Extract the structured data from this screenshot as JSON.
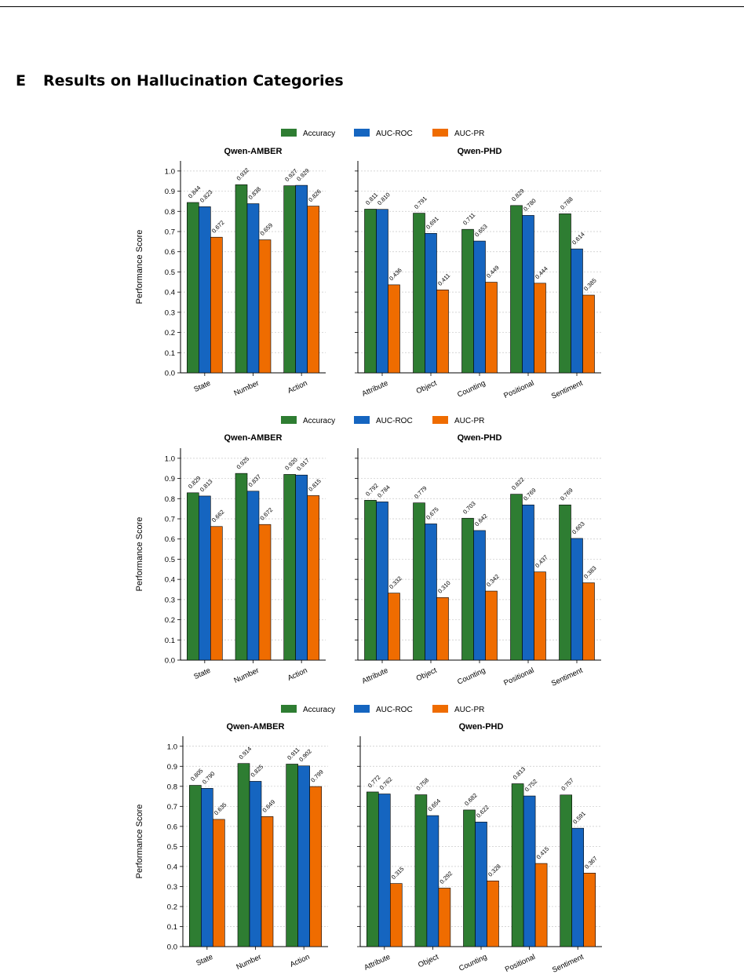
{
  "section": {
    "number": "E",
    "title": "Results on Hallucination Categories"
  },
  "colors": {
    "Accuracy": "#2e7d32",
    "AUC-ROC": "#1565c0",
    "AUC-PR": "#ef6c00"
  },
  "chart_data": [
    {
      "type": "bar",
      "legend": [
        "Accuracy",
        "AUC-ROC",
        "AUC-PR"
      ],
      "ylabel": "Performance Score",
      "ylim": [
        0,
        1.05
      ],
      "yticks": [
        "0.0",
        "0.1",
        "0.2",
        "0.3",
        "0.4",
        "0.5",
        "0.6",
        "0.7",
        "0.8",
        "0.9",
        "1.0"
      ],
      "grid": "horizontal-dotted",
      "panels": [
        {
          "title": "Qwen-AMBER",
          "categories": [
            "State",
            "Number",
            "Action"
          ],
          "series": [
            {
              "name": "Accuracy",
              "values": [
                0.844,
                0.932,
                0.927
              ]
            },
            {
              "name": "AUC-ROC",
              "values": [
                0.823,
                0.838,
                0.929
              ]
            },
            {
              "name": "AUC-PR",
              "values": [
                0.672,
                0.659,
                0.826
              ]
            }
          ]
        },
        {
          "title": "Qwen-PHD",
          "categories": [
            "Attribute",
            "Object",
            "Counting",
            "Positional",
            "Sentiment"
          ],
          "series": [
            {
              "name": "Accuracy",
              "values": [
                0.811,
                0.791,
                0.711,
                0.829,
                0.788
              ]
            },
            {
              "name": "AUC-ROC",
              "values": [
                0.81,
                0.691,
                0.653,
                0.78,
                0.614
              ]
            },
            {
              "name": "AUC-PR",
              "values": [
                0.436,
                0.411,
                0.449,
                0.444,
                0.385
              ]
            }
          ]
        }
      ]
    },
    {
      "type": "bar",
      "legend": [
        "Accuracy",
        "AUC-ROC",
        "AUC-PR"
      ],
      "ylabel": "Performance Score",
      "ylim": [
        0,
        1.05
      ],
      "yticks": [
        "0.0",
        "0.1",
        "0.2",
        "0.3",
        "0.4",
        "0.5",
        "0.6",
        "0.7",
        "0.8",
        "0.9",
        "1.0"
      ],
      "grid": "horizontal-dotted",
      "panels": [
        {
          "title": "Qwen-AMBER",
          "categories": [
            "State",
            "Number",
            "Action"
          ],
          "series": [
            {
              "name": "Accuracy",
              "values": [
                0.829,
                0.925,
                0.92
              ]
            },
            {
              "name": "AUC-ROC",
              "values": [
                0.813,
                0.837,
                0.917
              ]
            },
            {
              "name": "AUC-PR",
              "values": [
                0.662,
                0.672,
                0.815
              ]
            }
          ]
        },
        {
          "title": "Qwen-PHD",
          "categories": [
            "Attribute",
            "Object",
            "Counting",
            "Positional",
            "Sentiment"
          ],
          "series": [
            {
              "name": "Accuracy",
              "values": [
                0.792,
                0.779,
                0.703,
                0.822,
                0.769
              ]
            },
            {
              "name": "AUC-ROC",
              "values": [
                0.784,
                0.675,
                0.642,
                0.769,
                0.603
              ]
            },
            {
              "name": "AUC-PR",
              "values": [
                0.332,
                0.31,
                0.342,
                0.437,
                0.383
              ]
            }
          ]
        }
      ]
    },
    {
      "type": "bar",
      "legend": [
        "Accuracy",
        "AUC-ROC",
        "AUC-PR"
      ],
      "ylabel": "Performance Score",
      "ylim": [
        0,
        1.05
      ],
      "yticks": [
        "0.0",
        "0.1",
        "0.2",
        "0.3",
        "0.4",
        "0.5",
        "0.6",
        "0.7",
        "0.8",
        "0.9",
        "1.0"
      ],
      "grid": "horizontal-dotted",
      "panels": [
        {
          "title": "Qwen-AMBER",
          "categories": [
            "State",
            "Number",
            "Action"
          ],
          "series": [
            {
              "name": "Accuracy",
              "values": [
                0.805,
                0.914,
                0.911
              ]
            },
            {
              "name": "AUC-ROC",
              "values": [
                0.79,
                0.825,
                0.902
              ]
            },
            {
              "name": "AUC-PR",
              "values": [
                0.635,
                0.649,
                0.799
              ]
            }
          ]
        },
        {
          "title": "Qwen-PHD",
          "categories": [
            "Attribute",
            "Object",
            "Counting",
            "Positional",
            "Sentiment"
          ],
          "series": [
            {
              "name": "Accuracy",
              "values": [
                0.772,
                0.758,
                0.682,
                0.813,
                0.757
              ]
            },
            {
              "name": "AUC-ROC",
              "values": [
                0.762,
                0.654,
                0.622,
                0.752,
                0.591
              ]
            },
            {
              "name": "AUC-PR",
              "values": [
                0.315,
                0.292,
                0.328,
                0.415,
                0.367
              ]
            }
          ]
        }
      ]
    }
  ]
}
